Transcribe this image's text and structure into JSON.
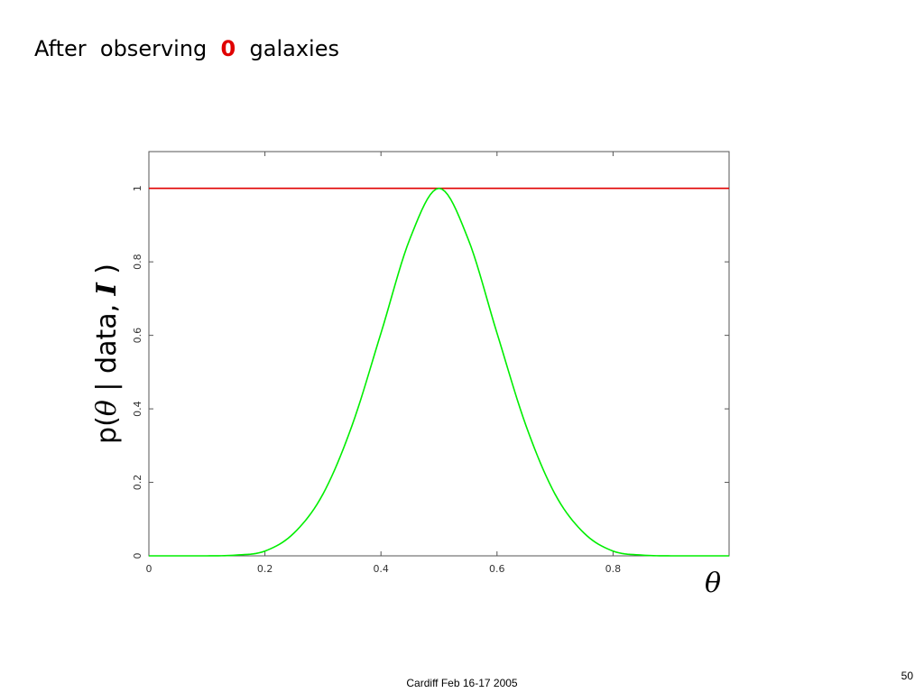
{
  "slide": {
    "title_prefix": "After  observing",
    "title_count": "0",
    "title_suffix": "galaxies",
    "highlight_color": "#e00000",
    "footer": "Cardiff Feb 16-17 2005",
    "page_number": "50"
  },
  "chart_data": {
    "type": "line",
    "title": "",
    "xlabel": "θ",
    "ylabel": {
      "prefix": "p(",
      "theta": "θ",
      "middle": " | data, ",
      "info": "I",
      "suffix": " )"
    },
    "xlim": [
      0,
      1
    ],
    "ylim": [
      0,
      1.1
    ],
    "xticks": [
      0,
      0.2,
      0.4,
      0.6,
      0.8
    ],
    "xtick_labels": [
      "0",
      "0.2",
      "0.4",
      "0.6",
      "0.8"
    ],
    "yticks": [
      0,
      0.2,
      0.4,
      0.6,
      0.8,
      1
    ],
    "ytick_labels": [
      "0",
      "0.2",
      "0.4",
      "0.6",
      "0.8",
      "1"
    ],
    "grid": false,
    "series": [
      {
        "color": "#e00000",
        "x": [
          0,
          1
        ],
        "y": [
          1,
          1
        ]
      },
      {
        "color": "#00ee00",
        "x": [
          0,
          0.05,
          0.1,
          0.15,
          0.2,
          0.25,
          0.3,
          0.35,
          0.4,
          0.45,
          0.5,
          0.55,
          0.6,
          0.65,
          0.7,
          0.75,
          0.8,
          0.85,
          0.9,
          0.95,
          1
        ],
        "y": [
          0,
          0,
          0,
          0.002,
          0.013,
          0.062,
          0.168,
          0.354,
          0.606,
          0.863,
          1.0,
          0.863,
          0.606,
          0.354,
          0.168,
          0.062,
          0.013,
          0.002,
          0,
          0,
          0
        ]
      }
    ]
  }
}
